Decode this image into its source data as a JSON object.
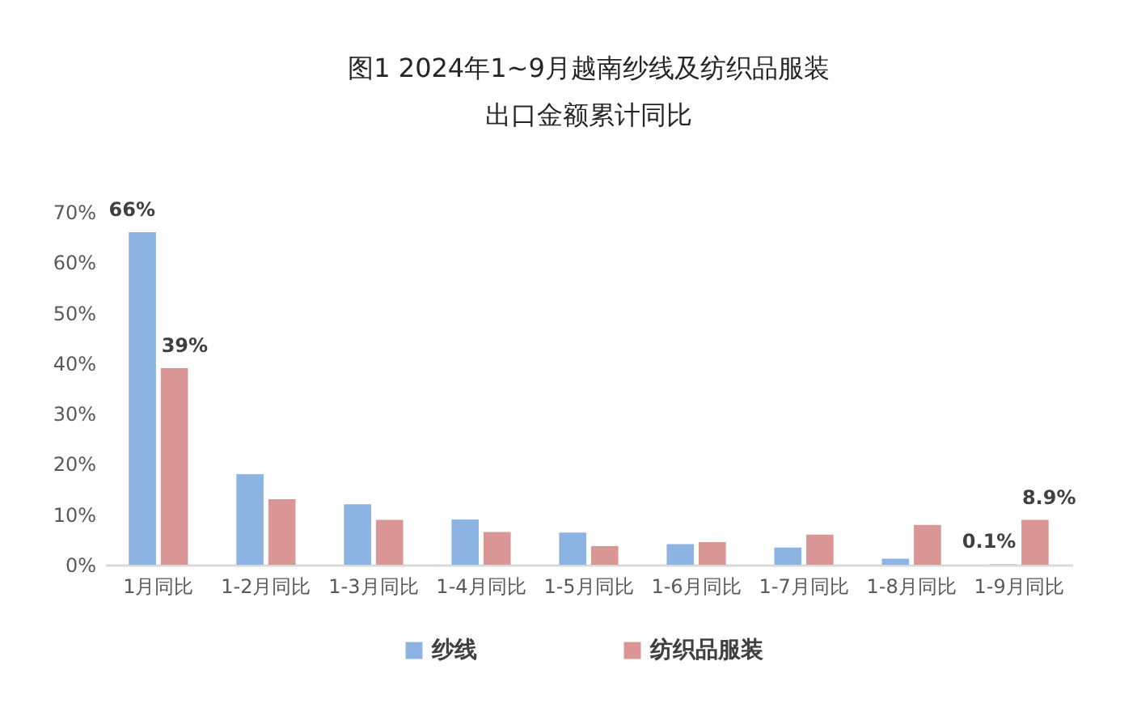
{
  "chart_data": {
    "type": "bar",
    "title": "图1 2024年1~9月越南纱线及纺织品服装出口金额累计同比",
    "categories": [
      "1月同比",
      "1-2月同比",
      "1-3月同比",
      "1-4月同比",
      "1-5月同比",
      "1-6月同比",
      "1-7月同比",
      "1-8月同比",
      "1-9月同比"
    ],
    "series": [
      {
        "name": "纱线",
        "color": "#8db3e2",
        "values": [
          66,
          18,
          12,
          9,
          6.4,
          4.1,
          3.4,
          1.2,
          0.1
        ],
        "value_labels": [
          "66%",
          null,
          null,
          null,
          null,
          null,
          null,
          null,
          "0.1%"
        ]
      },
      {
        "name": "纺织品服装",
        "color": "#da9694",
        "values": [
          39,
          13,
          8.9,
          6.5,
          3.7,
          4.5,
          6.0,
          7.9,
          8.9
        ],
        "value_labels": [
          "39%",
          null,
          null,
          null,
          null,
          null,
          null,
          null,
          "8.9%"
        ]
      }
    ],
    "ylim": [
      0,
      70
    ],
    "yticks": [
      {
        "value": 0,
        "label": "0%"
      },
      {
        "value": 10,
        "label": "10%"
      },
      {
        "value": 20,
        "label": "20%"
      },
      {
        "value": 30,
        "label": "30%"
      },
      {
        "value": 40,
        "label": "40%"
      },
      {
        "value": 50,
        "label": "50%"
      },
      {
        "value": 60,
        "label": "60%"
      },
      {
        "value": 70,
        "label": "70%"
      }
    ],
    "grid": false,
    "legend": "bottom"
  }
}
